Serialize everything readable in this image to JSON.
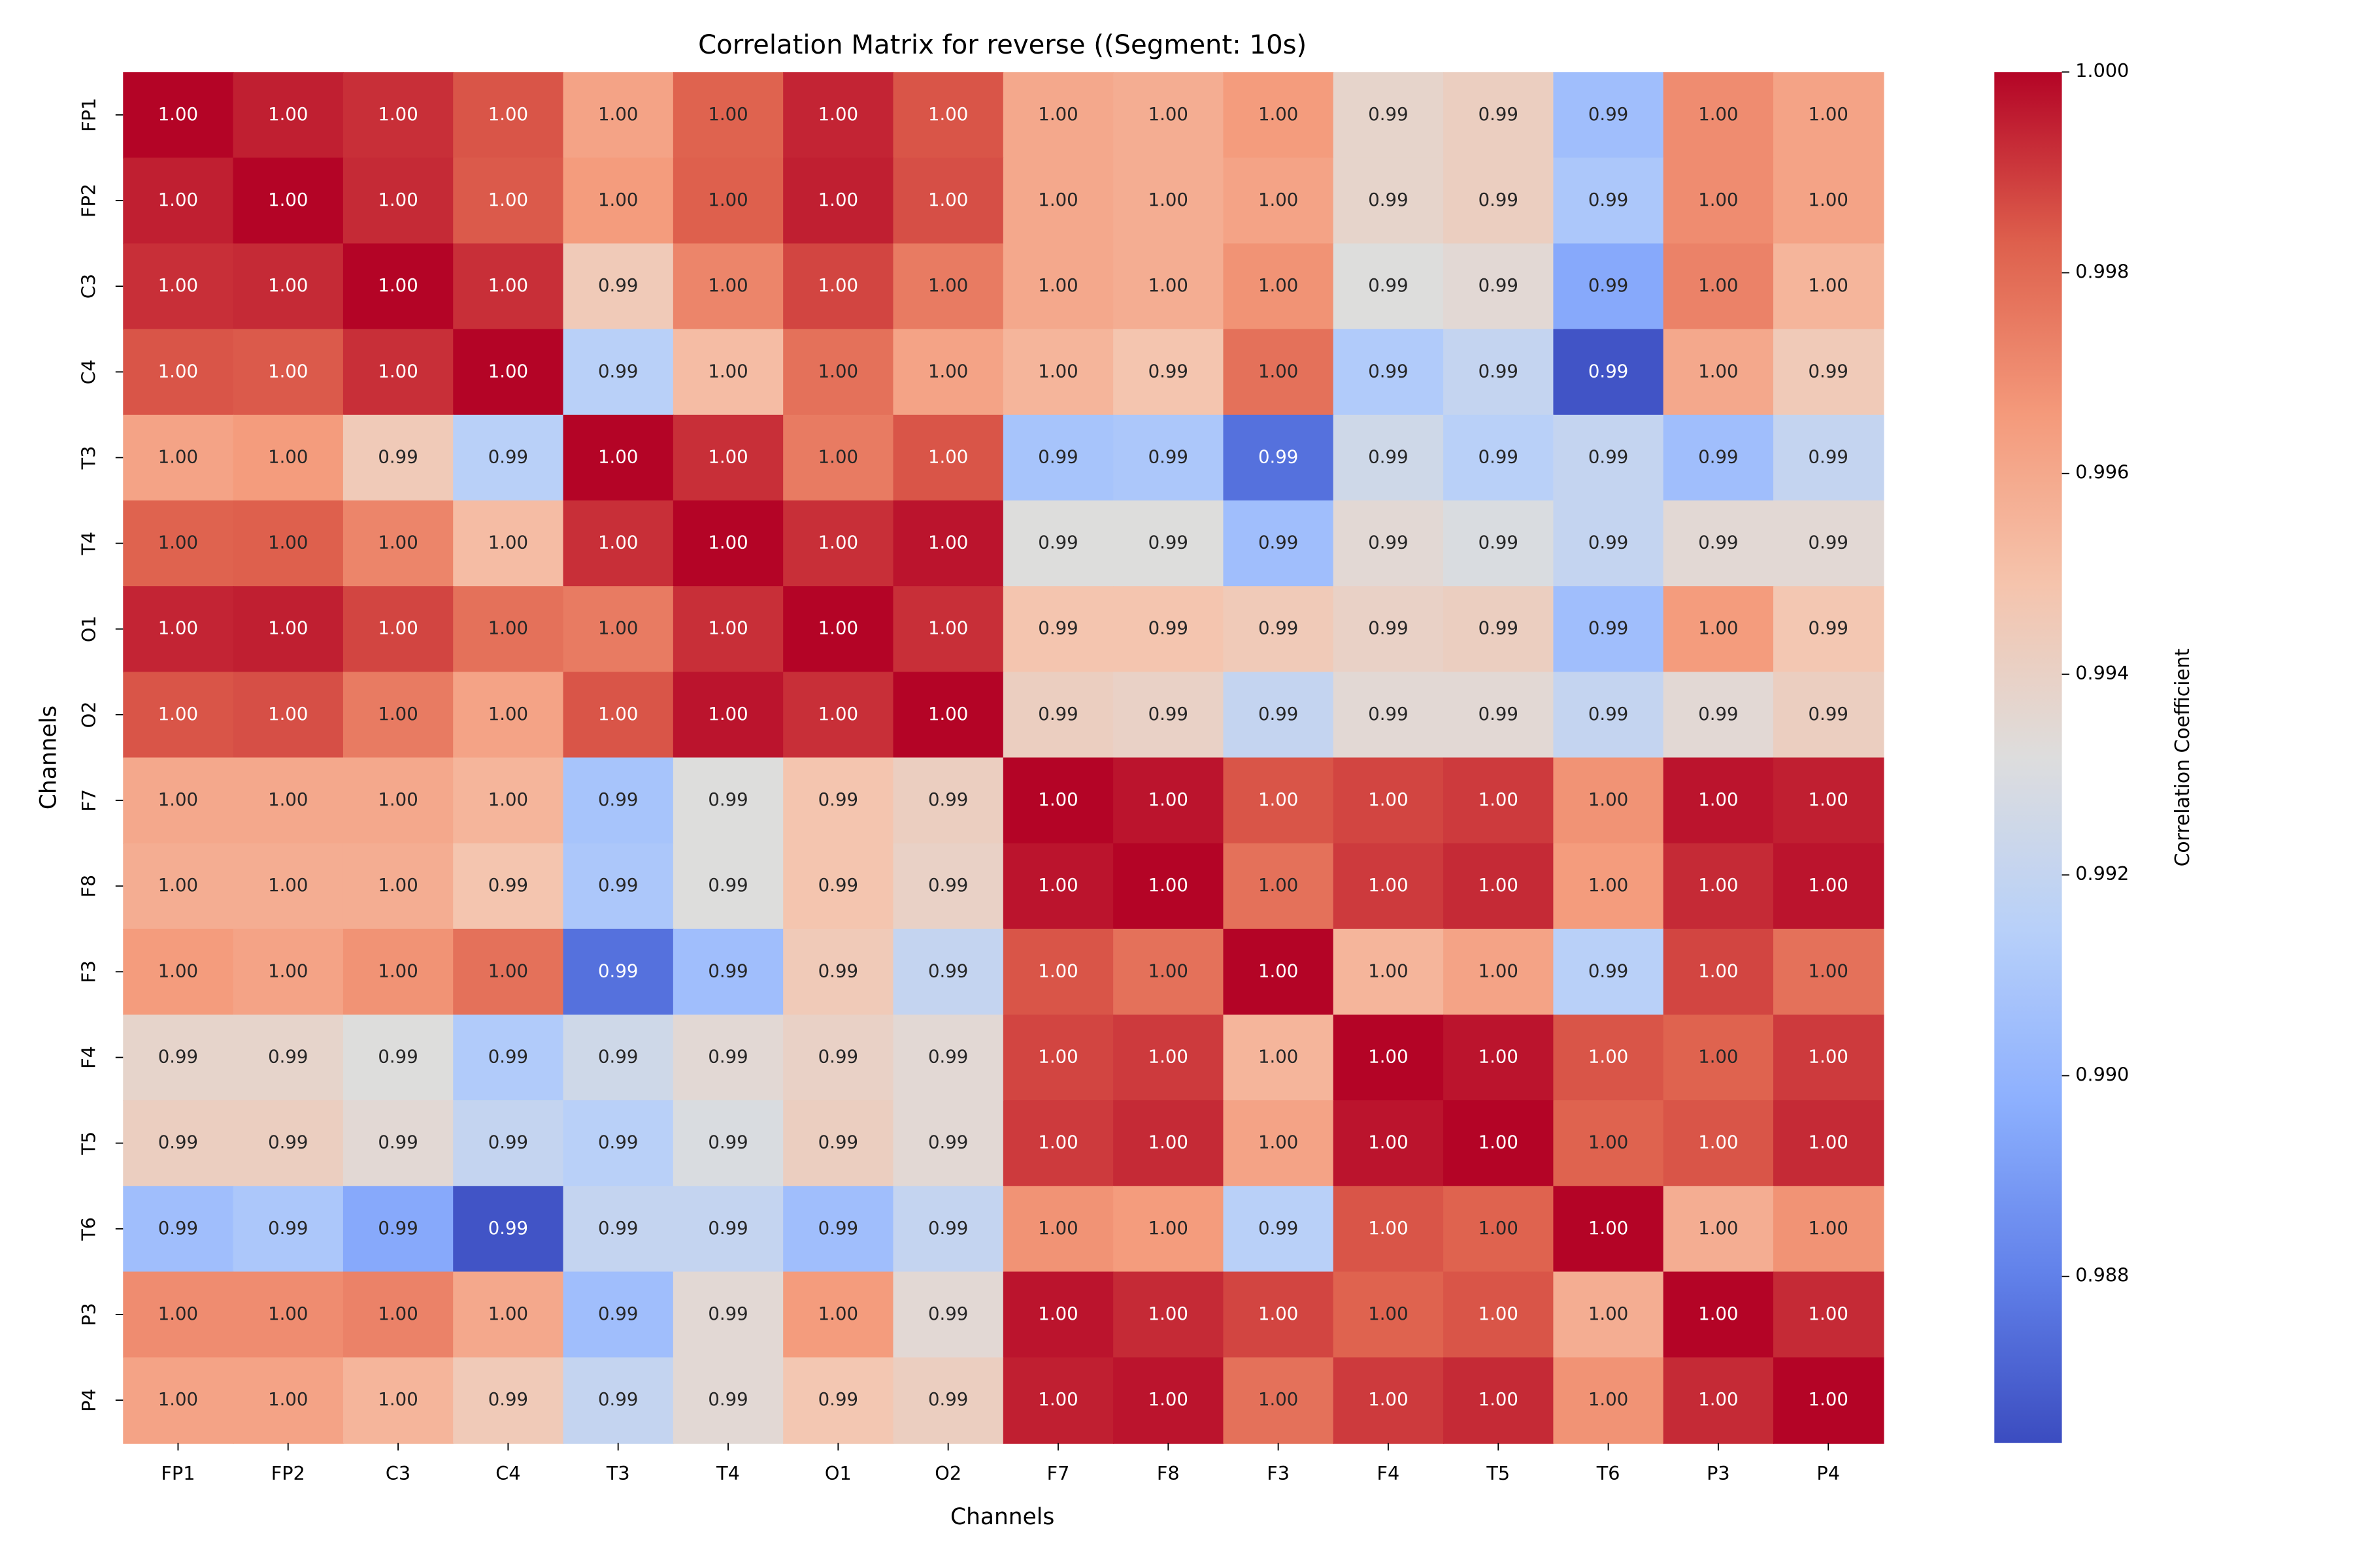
{
  "chart_data": {
    "type": "heatmap",
    "title": "Correlation Matrix for reverse ((Segment: 10s)",
    "x_label": "Channels",
    "y_label": "Channels",
    "colorbar_label": "Correlation Coefficient",
    "colormap": "coolwarm",
    "x_categories": [
      "FP1",
      "FP2",
      "C3",
      "C4",
      "T3",
      "T4",
      "O1",
      "O2",
      "F7",
      "F8",
      "F3",
      "F4",
      "T5",
      "T6",
      "P3",
      "P4"
    ],
    "y_categories": [
      "FP1",
      "FP2",
      "C3",
      "C4",
      "T3",
      "T4",
      "O1",
      "O2",
      "F7",
      "F8",
      "F3",
      "F4",
      "T5",
      "T6",
      "P3",
      "P4"
    ],
    "zlim": [
      0.98634,
      1.0
    ],
    "zticks": [
      0.988,
      {
        "value": 0.99,
        "label": "0.990"
      },
      0.992,
      0.994,
      0.996,
      0.998,
      {
        "value": 1.0,
        "label": "1.000"
      }
    ],
    "values": [
      [
        1.0,
        0.9995,
        0.9992,
        0.9985,
        0.9962,
        0.9982,
        0.9994,
        0.9985,
        0.996,
        0.9958,
        0.9965,
        0.9938,
        0.9942,
        0.9905,
        0.997,
        0.9962
      ],
      [
        0.9995,
        1.0,
        0.9993,
        0.9984,
        0.9965,
        0.9983,
        0.9995,
        0.9986,
        0.996,
        0.9958,
        0.9962,
        0.9938,
        0.9942,
        0.991,
        0.997,
        0.9962
      ],
      [
        0.9992,
        0.9993,
        1.0,
        0.9992,
        0.9945,
        0.9972,
        0.9988,
        0.9975,
        0.996,
        0.9958,
        0.9968,
        0.9932,
        0.9935,
        0.9895,
        0.9973,
        0.9955
      ],
      [
        0.9985,
        0.9984,
        0.9992,
        1.0,
        0.9915,
        0.9952,
        0.9978,
        0.9962,
        0.9955,
        0.9948,
        0.9978,
        0.9912,
        0.992,
        0.9866,
        0.996,
        0.9945
      ],
      [
        0.9962,
        0.9965,
        0.9945,
        0.9915,
        1.0,
        0.9992,
        0.9975,
        0.9985,
        0.9908,
        0.991,
        0.9875,
        0.9925,
        0.9915,
        0.992,
        0.9905,
        0.992
      ],
      [
        0.9982,
        0.9983,
        0.9972,
        0.9952,
        0.9992,
        1.0,
        0.9992,
        0.9997,
        0.9932,
        0.9932,
        0.9905,
        0.9935,
        0.993,
        0.992,
        0.9935,
        0.9935
      ],
      [
        0.9994,
        0.9995,
        0.9988,
        0.9978,
        0.9975,
        0.9992,
        1.0,
        0.9992,
        0.9948,
        0.9948,
        0.9945,
        0.994,
        0.9942,
        0.9905,
        0.9965,
        0.9947
      ],
      [
        0.9985,
        0.9986,
        0.9975,
        0.9962,
        0.9985,
        0.9997,
        0.9992,
        1.0,
        0.9942,
        0.994,
        0.992,
        0.9935,
        0.9935,
        0.992,
        0.9935,
        0.9942
      ],
      [
        0.996,
        0.996,
        0.996,
        0.9955,
        0.9908,
        0.9932,
        0.9948,
        0.9942,
        1.0,
        0.9997,
        0.9985,
        0.9988,
        0.999,
        0.9968,
        0.9997,
        0.9995
      ],
      [
        0.9958,
        0.9958,
        0.9958,
        0.9948,
        0.991,
        0.9932,
        0.9948,
        0.994,
        0.9997,
        1.0,
        0.9978,
        0.999,
        0.9993,
        0.9965,
        0.9993,
        0.9997
      ],
      [
        0.9965,
        0.9962,
        0.9968,
        0.9978,
        0.9875,
        0.9905,
        0.9945,
        0.992,
        0.9985,
        0.9978,
        1.0,
        0.9955,
        0.9962,
        0.9915,
        0.9988,
        0.9978
      ],
      [
        0.9938,
        0.9938,
        0.9932,
        0.9912,
        0.9925,
        0.9935,
        0.994,
        0.9935,
        0.9988,
        0.999,
        0.9955,
        1.0,
        0.9997,
        0.9985,
        0.9982,
        0.999
      ],
      [
        0.9942,
        0.9942,
        0.9935,
        0.992,
        0.9915,
        0.993,
        0.9942,
        0.9935,
        0.999,
        0.9993,
        0.9962,
        0.9997,
        1.0,
        0.9982,
        0.9985,
        0.9993
      ],
      [
        0.9905,
        0.991,
        0.9895,
        0.9866,
        0.992,
        0.992,
        0.9905,
        0.992,
        0.9968,
        0.9965,
        0.9915,
        0.9985,
        0.9982,
        1.0,
        0.9958,
        0.9968
      ],
      [
        0.997,
        0.997,
        0.9973,
        0.996,
        0.9905,
        0.9935,
        0.9965,
        0.9935,
        0.9997,
        0.9993,
        0.9988,
        0.9982,
        0.9985,
        0.9958,
        1.0,
        0.9993
      ],
      [
        0.9962,
        0.9962,
        0.9955,
        0.9945,
        0.992,
        0.9935,
        0.9947,
        0.9942,
        0.9995,
        0.9997,
        0.9978,
        0.999,
        0.9993,
        0.9968,
        0.9993,
        1.0
      ]
    ],
    "value_labels": [
      [
        "1.00",
        "1.00",
        "1.00",
        "1.00",
        "1.00",
        "1.00",
        "1.00",
        "1.00",
        "1.00",
        "1.00",
        "1.00",
        "0.99",
        "0.99",
        "0.99",
        "1.00",
        "1.00"
      ],
      [
        "1.00",
        "1.00",
        "1.00",
        "1.00",
        "1.00",
        "1.00",
        "1.00",
        "1.00",
        "1.00",
        "1.00",
        "1.00",
        "0.99",
        "0.99",
        "0.99",
        "1.00",
        "1.00"
      ],
      [
        "1.00",
        "1.00",
        "1.00",
        "1.00",
        "0.99",
        "1.00",
        "1.00",
        "1.00",
        "1.00",
        "1.00",
        "1.00",
        "0.99",
        "0.99",
        "0.99",
        "1.00",
        "1.00"
      ],
      [
        "1.00",
        "1.00",
        "1.00",
        "1.00",
        "0.99",
        "1.00",
        "1.00",
        "1.00",
        "1.00",
        "0.99",
        "1.00",
        "0.99",
        "0.99",
        "0.99",
        "1.00",
        "0.99"
      ],
      [
        "1.00",
        "1.00",
        "0.99",
        "0.99",
        "1.00",
        "1.00",
        "1.00",
        "1.00",
        "0.99",
        "0.99",
        "0.99",
        "0.99",
        "0.99",
        "0.99",
        "0.99",
        "0.99"
      ],
      [
        "1.00",
        "1.00",
        "1.00",
        "1.00",
        "1.00",
        "1.00",
        "1.00",
        "1.00",
        "0.99",
        "0.99",
        "0.99",
        "0.99",
        "0.99",
        "0.99",
        "0.99",
        "0.99"
      ],
      [
        "1.00",
        "1.00",
        "1.00",
        "1.00",
        "1.00",
        "1.00",
        "1.00",
        "1.00",
        "0.99",
        "0.99",
        "0.99",
        "0.99",
        "0.99",
        "0.99",
        "1.00",
        "0.99"
      ],
      [
        "1.00",
        "1.00",
        "1.00",
        "1.00",
        "1.00",
        "1.00",
        "1.00",
        "1.00",
        "0.99",
        "0.99",
        "0.99",
        "0.99",
        "0.99",
        "0.99",
        "0.99",
        "0.99"
      ],
      [
        "1.00",
        "1.00",
        "1.00",
        "1.00",
        "0.99",
        "0.99",
        "0.99",
        "0.99",
        "1.00",
        "1.00",
        "1.00",
        "1.00",
        "1.00",
        "1.00",
        "1.00",
        "1.00"
      ],
      [
        "1.00",
        "1.00",
        "1.00",
        "0.99",
        "0.99",
        "0.99",
        "0.99",
        "0.99",
        "1.00",
        "1.00",
        "1.00",
        "1.00",
        "1.00",
        "1.00",
        "1.00",
        "1.00"
      ],
      [
        "1.00",
        "1.00",
        "1.00",
        "1.00",
        "0.99",
        "0.99",
        "0.99",
        "0.99",
        "1.00",
        "1.00",
        "1.00",
        "1.00",
        "1.00",
        "0.99",
        "1.00",
        "1.00"
      ],
      [
        "0.99",
        "0.99",
        "0.99",
        "0.99",
        "0.99",
        "0.99",
        "0.99",
        "0.99",
        "1.00",
        "1.00",
        "1.00",
        "1.00",
        "1.00",
        "1.00",
        "1.00",
        "1.00"
      ],
      [
        "0.99",
        "0.99",
        "0.99",
        "0.99",
        "0.99",
        "0.99",
        "0.99",
        "0.99",
        "1.00",
        "1.00",
        "1.00",
        "1.00",
        "1.00",
        "1.00",
        "1.00",
        "1.00"
      ],
      [
        "0.99",
        "0.99",
        "0.99",
        "0.99",
        "0.99",
        "0.99",
        "0.99",
        "0.99",
        "1.00",
        "1.00",
        "0.99",
        "1.00",
        "1.00",
        "1.00",
        "1.00",
        "1.00"
      ],
      [
        "1.00",
        "1.00",
        "1.00",
        "1.00",
        "0.99",
        "0.99",
        "1.00",
        "0.99",
        "1.00",
        "1.00",
        "1.00",
        "1.00",
        "1.00",
        "1.00",
        "1.00",
        "1.00"
      ],
      [
        "1.00",
        "1.00",
        "1.00",
        "0.99",
        "0.99",
        "0.99",
        "0.99",
        "0.99",
        "1.00",
        "1.00",
        "1.00",
        "1.00",
        "1.00",
        "1.00",
        "1.00",
        "1.00"
      ]
    ]
  }
}
